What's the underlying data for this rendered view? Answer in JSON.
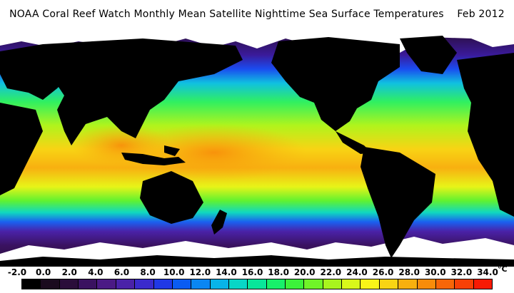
{
  "title": "NOAA Coral Reef Watch Monthly Mean Satellite Nighttime Sea Surface Temperatures    Feb 2012",
  "colorbar": {
    "labels": [
      "-2.0",
      "0.0",
      "2.0",
      "4.0",
      "6.0",
      "8.0",
      "10.0",
      "12.0",
      "14.0",
      "16.0",
      "18.0",
      "20.0",
      "22.0",
      "24.0",
      "26.0",
      "28.0",
      "30.0",
      "32.0",
      "34.0"
    ],
    "unit": "°C",
    "colors": [
      "#000000",
      "#1a0a1e",
      "#2a0d3a",
      "#3a1260",
      "#4b1a85",
      "#4a22a8",
      "#3a2acc",
      "#2038e6",
      "#0a5cf2",
      "#0a86f2",
      "#08b4e8",
      "#08d6c6",
      "#08e69a",
      "#18f06a",
      "#3cf23a",
      "#70f428",
      "#a8f41e",
      "#d8f81a",
      "#f8f418",
      "#f8d414",
      "#f8b00e",
      "#f88c0a",
      "#f86608",
      "#f84006",
      "#f81a04"
    ]
  },
  "map": {
    "type": "global sea surface temperature",
    "month": "Feb 2012"
  }
}
